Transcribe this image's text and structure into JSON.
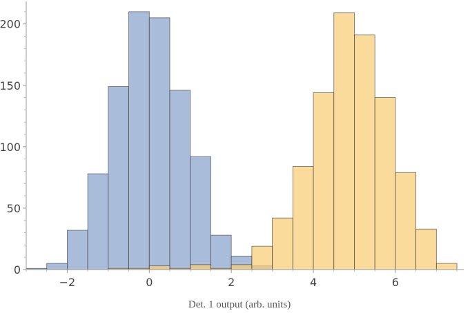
{
  "chart_data": {
    "type": "bar",
    "title": "",
    "xlabel": "Det. 1 output (arb. units)",
    "ylabel": "",
    "xlim": [
      -3.0,
      7.6
    ],
    "ylim": [
      0,
      215
    ],
    "xticks": [
      -2,
      0,
      2,
      4,
      6
    ],
    "xtick_labels": [
      "−2",
      "0",
      "2",
      "4",
      "6"
    ],
    "yticks": [
      0,
      50,
      100,
      150,
      200
    ],
    "ytick_labels": [
      "0",
      "50",
      "100",
      "150",
      "200"
    ],
    "grid": false,
    "legend": "none",
    "bin_width": 0.5,
    "series": [
      {
        "color": "#a9bcd9",
        "opacity": 1,
        "bins": [
          {
            "x0": -3.0,
            "value": 1
          },
          {
            "x0": -2.5,
            "value": 5
          },
          {
            "x0": -2.0,
            "value": 32
          },
          {
            "x0": -1.5,
            "value": 78
          },
          {
            "x0": -1.0,
            "value": 149
          },
          {
            "x0": -0.5,
            "value": 210
          },
          {
            "x0": 0.0,
            "value": 205
          },
          {
            "x0": 0.5,
            "value": 146
          },
          {
            "x0": 1.0,
            "value": 92
          },
          {
            "x0": 1.5,
            "value": 28
          },
          {
            "x0": 2.0,
            "value": 11
          },
          {
            "x0": 2.5,
            "value": 3
          }
        ]
      },
      {
        "color": "#f9cd75",
        "opacity": 0.72,
        "bins": [
          {
            "x0": -1.0,
            "value": 1
          },
          {
            "x0": -0.5,
            "value": 1
          },
          {
            "x0": 0.0,
            "value": 3
          },
          {
            "x0": 0.5,
            "value": 1
          },
          {
            "x0": 1.0,
            "value": 4
          },
          {
            "x0": 1.5,
            "value": 1
          },
          {
            "x0": 2.0,
            "value": 4
          },
          {
            "x0": 2.5,
            "value": 19
          },
          {
            "x0": 3.0,
            "value": 42
          },
          {
            "x0": 3.5,
            "value": 84
          },
          {
            "x0": 4.0,
            "value": 144
          },
          {
            "x0": 4.5,
            "value": 209
          },
          {
            "x0": 5.0,
            "value": 191
          },
          {
            "x0": 5.5,
            "value": 140
          },
          {
            "x0": 6.0,
            "value": 79
          },
          {
            "x0": 6.5,
            "value": 33
          },
          {
            "x0": 7.0,
            "value": 5
          }
        ]
      }
    ]
  }
}
